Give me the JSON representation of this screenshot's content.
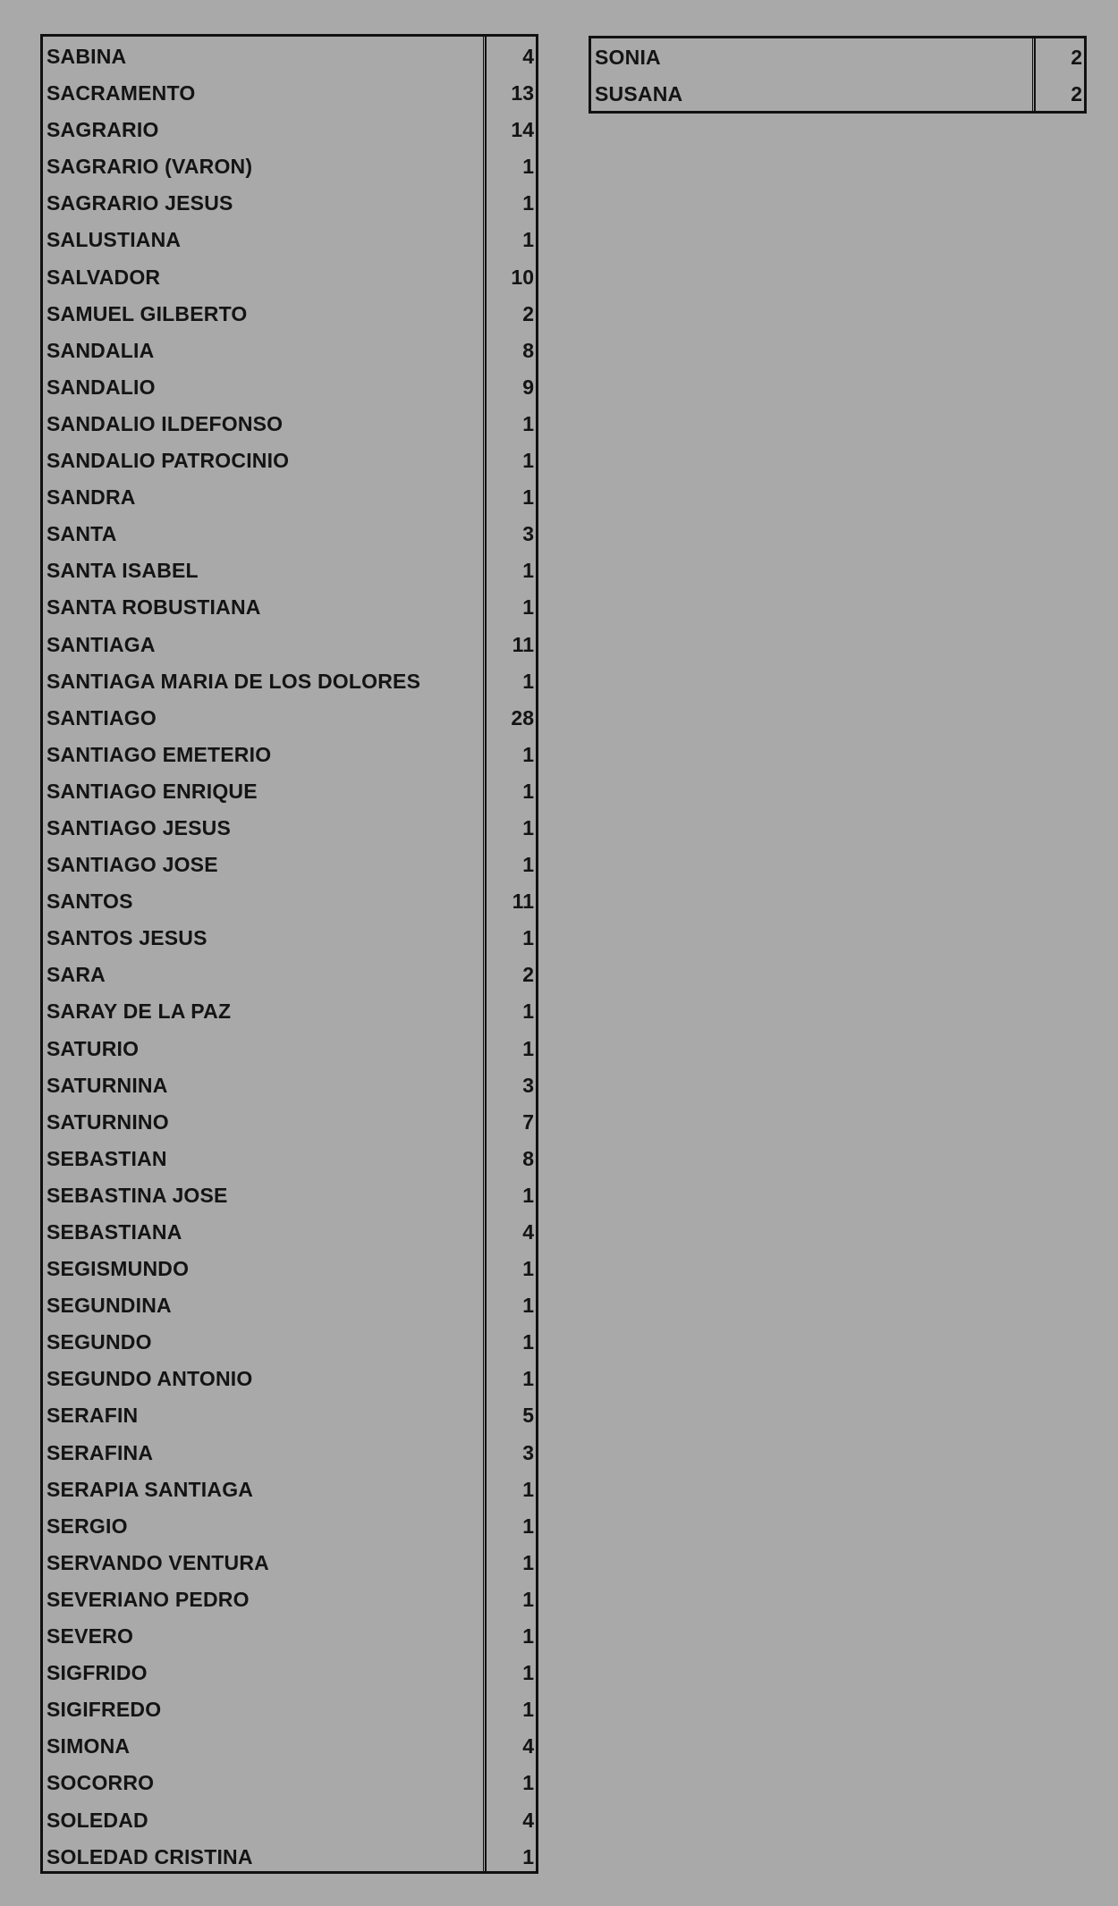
{
  "tables": [
    {
      "rows": [
        [
          "SABINA",
          4
        ],
        [
          "SACRAMENTO",
          13
        ],
        [
          "SAGRARIO",
          14
        ],
        [
          "SAGRARIO (VARON)",
          1
        ],
        [
          "SAGRARIO JESUS",
          1
        ],
        [
          "SALUSTIANA",
          1
        ],
        [
          "SALVADOR",
          10
        ],
        [
          "SAMUEL GILBERTO",
          2
        ],
        [
          "SANDALIA",
          8
        ],
        [
          "SANDALIO",
          9
        ],
        [
          "SANDALIO ILDEFONSO",
          1
        ],
        [
          "SANDALIO PATROCINIO",
          1
        ],
        [
          "SANDRA",
          1
        ],
        [
          "SANTA",
          3
        ],
        [
          "SANTA ISABEL",
          1
        ],
        [
          "SANTA ROBUSTIANA",
          1
        ],
        [
          "SANTIAGA",
          11
        ],
        [
          "SANTIAGA MARIA DE LOS DOLORES",
          1
        ],
        [
          "SANTIAGO",
          28
        ],
        [
          "SANTIAGO EMETERIO",
          1
        ],
        [
          "SANTIAGO ENRIQUE",
          1
        ],
        [
          "SANTIAGO JESUS",
          1
        ],
        [
          "SANTIAGO JOSE",
          1
        ],
        [
          "SANTOS",
          11
        ],
        [
          "SANTOS JESUS",
          1
        ],
        [
          "SARA",
          2
        ],
        [
          "SARAY DE LA PAZ",
          1
        ],
        [
          "SATURIO",
          1
        ],
        [
          "SATURNINA",
          3
        ],
        [
          "SATURNINO",
          7
        ],
        [
          "SEBASTIAN",
          8
        ],
        [
          "SEBASTINA JOSE",
          1
        ],
        [
          "SEBASTIANA",
          4
        ],
        [
          "SEGISMUNDO",
          1
        ],
        [
          "SEGUNDINA",
          1
        ],
        [
          "SEGUNDO",
          1
        ],
        [
          "SEGUNDO ANTONIO",
          1
        ],
        [
          "SERAFIN",
          5
        ],
        [
          "SERAFINA",
          3
        ],
        [
          "SERAPIA SANTIAGA",
          1
        ],
        [
          "SERGIO",
          1
        ],
        [
          "SERVANDO VENTURA",
          1
        ],
        [
          "SEVERIANO PEDRO",
          1
        ],
        [
          "SEVERO",
          1
        ],
        [
          "SIGFRIDO",
          1
        ],
        [
          "SIGIFREDO",
          1
        ],
        [
          "SIMONA",
          4
        ],
        [
          "SOCORRO",
          1
        ],
        [
          "SOLEDAD",
          4
        ],
        [
          "SOLEDAD CRISTINA",
          1
        ]
      ]
    },
    {
      "rows": [
        [
          "SONIA",
          2
        ],
        [
          "SUSANA",
          2
        ]
      ]
    }
  ]
}
